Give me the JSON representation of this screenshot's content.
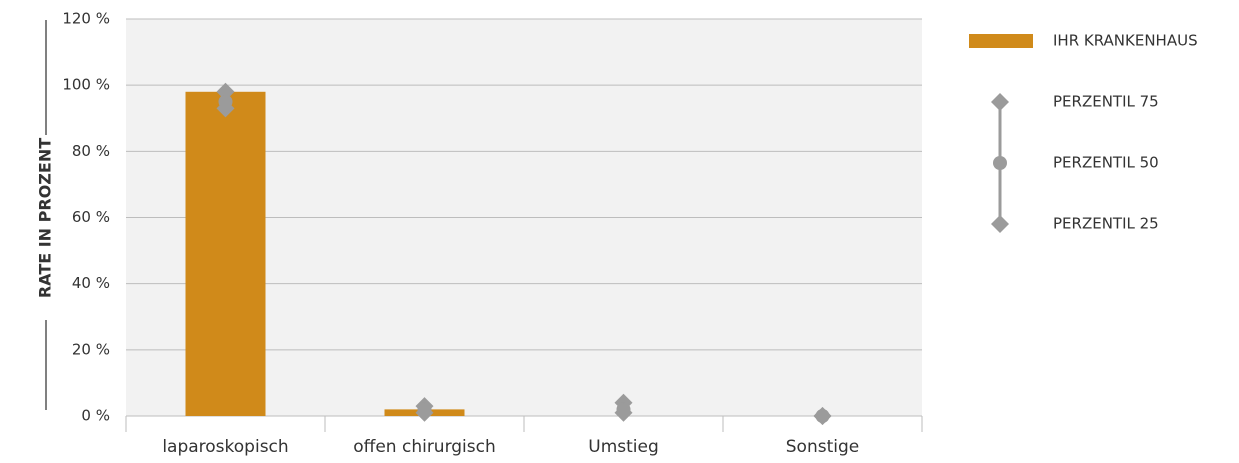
{
  "chart_data": {
    "type": "bar",
    "y_label": "RATE IN PROZENT",
    "categories": [
      "laparoskopisch",
      "offen chirurgisch",
      "Umstieg",
      "Sonstige"
    ],
    "series": [
      {
        "name": "IHR KRANKENHAUS",
        "type": "bar",
        "color": "#d08a1a",
        "values": [
          98,
          2,
          0,
          0
        ]
      },
      {
        "name": "PERZENTIL 75",
        "type": "marker",
        "marker": "diamond",
        "color": "#9b9b9b",
        "values": [
          98,
          3,
          4,
          0
        ]
      },
      {
        "name": "PERZENTIL 50",
        "type": "marker",
        "marker": "circle",
        "color": "#9b9b9b",
        "values": [
          95,
          2,
          2,
          0
        ]
      },
      {
        "name": "PERZENTIL 25",
        "type": "marker",
        "marker": "diamond",
        "color": "#9b9b9b",
        "values": [
          93,
          1,
          1,
          0
        ]
      }
    ],
    "ylim": [
      0,
      120
    ],
    "yticks": [
      {
        "value": 0,
        "label": "0 %"
      },
      {
        "value": 20,
        "label": "20 %"
      },
      {
        "value": 40,
        "label": "40 %"
      },
      {
        "value": 60,
        "label": "60 %"
      },
      {
        "value": 80,
        "label": "80 %"
      },
      {
        "value": 100,
        "label": "100 %"
      },
      {
        "value": 120,
        "label": "120 %"
      }
    ],
    "grid": true,
    "legend": "right"
  }
}
